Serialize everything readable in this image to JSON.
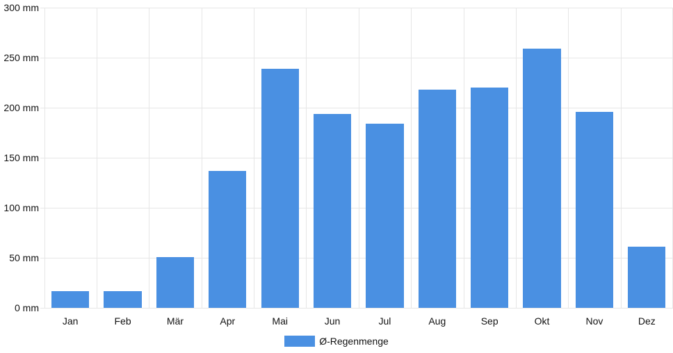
{
  "chart_data": {
    "type": "bar",
    "title": "",
    "categories": [
      "Jan",
      "Feb",
      "Mär",
      "Apr",
      "Mai",
      "Jun",
      "Jul",
      "Aug",
      "Sep",
      "Okt",
      "Nov",
      "Dez"
    ],
    "series": [
      {
        "name": "Ø-Regenmenge",
        "values": [
          17,
          17,
          51,
          137,
          239,
          194,
          184,
          218,
          220,
          259,
          196,
          61
        ]
      }
    ],
    "unit": "mm",
    "ylim": [
      0,
      300
    ],
    "ytick_step": 50,
    "ytick_labels": [
      "0 mm",
      "50 mm",
      "100 mm",
      "150 mm",
      "200 mm",
      "250 mm",
      "300 mm"
    ],
    "grid": "on",
    "legend_position": "bottom"
  },
  "colors": {
    "bar": "#4a90e2",
    "gridline": "#e6e6e6",
    "text": "#111111",
    "background": "#ffffff"
  },
  "legend": {
    "label": "Ø-Regenmenge"
  }
}
